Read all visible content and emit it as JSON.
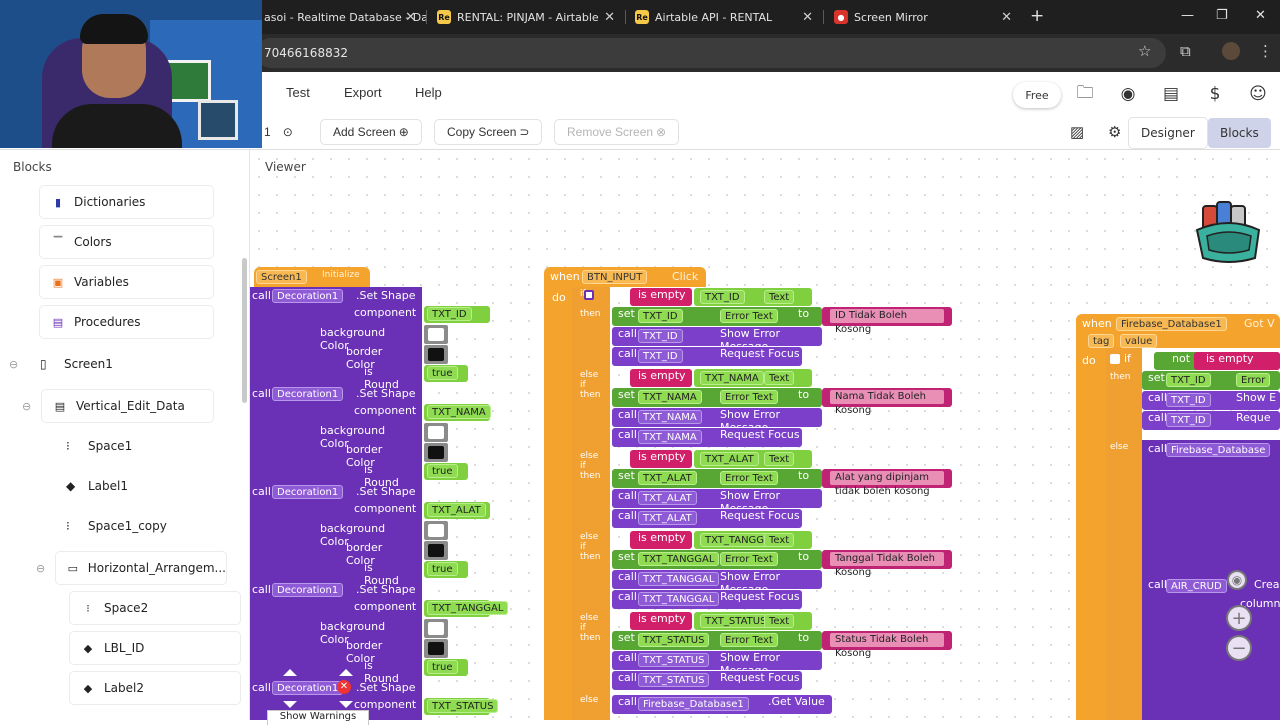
{
  "browser": {
    "tabs": [
      {
        "label": "asoi - Realtime Database - Da",
        "favicon": ""
      },
      {
        "label": "RENTAL: PINJAM - Airtable",
        "favicon": "Re"
      },
      {
        "label": "Airtable API - RENTAL",
        "favicon": "Re"
      },
      {
        "label": "Screen Mirror",
        "favicon": "●"
      }
    ],
    "new_tab": "+",
    "window_controls": [
      "—",
      "❐",
      "✕"
    ],
    "url": "70466168832"
  },
  "menu": {
    "items": [
      "Test",
      "Export",
      "Help"
    ],
    "plan_badge": "Free"
  },
  "screen_bar": {
    "screen_selector": "1",
    "add_screen": "Add Screen",
    "copy_screen": "Copy Screen",
    "remove_screen": "Remove Screen",
    "designer": "Designer",
    "blocks": "Blocks"
  },
  "sidebar": {
    "title": "Blocks",
    "builtins": [
      "Dictionaries",
      "Colors",
      "Variables",
      "Procedures"
    ],
    "tree": [
      {
        "label": "Screen1"
      },
      {
        "label": "Vertical_Edit_Data"
      },
      {
        "label": "Space1"
      },
      {
        "label": "Label1"
      },
      {
        "label": "Space1_copy"
      },
      {
        "label": "Horizontal_Arrangem..."
      },
      {
        "label": "Space2"
      },
      {
        "label": "LBL_ID"
      },
      {
        "label": "Label2"
      }
    ]
  },
  "viewer": {
    "title": "Viewer",
    "tooltip": "Show Warnings",
    "screen_init": {
      "event": "Screen1",
      "event_suffix": "Initialize",
      "calls": [
        {
          "call": "call",
          "component": "Decoration1",
          "method": ".Set Shape",
          "arg_component": "TXT_ID",
          "bg_label": "background Color",
          "border_label": "border Color",
          "round_label": "is Round",
          "round_value": "true",
          "comp_label": "component"
        },
        {
          "call": "call",
          "component": "Decoration1",
          "method": ".Set Shape",
          "arg_component": "TXT_NAMA",
          "bg_label": "background Color",
          "border_label": "border Color",
          "round_label": "is Round",
          "round_value": "true",
          "comp_label": "component"
        },
        {
          "call": "call",
          "component": "Decoration1",
          "method": ".Set Shape",
          "arg_component": "TXT_ALAT",
          "bg_label": "background Color",
          "border_label": "border Color",
          "round_label": "is Round",
          "round_value": "true",
          "comp_label": "component"
        },
        {
          "call": "call",
          "component": "Decoration1",
          "method": ".Set Shape",
          "arg_component": "TXT_TANGGAL",
          "bg_label": "background Color",
          "border_label": "border Color",
          "round_label": "is Round",
          "round_value": "true",
          "comp_label": "component"
        },
        {
          "call": "call",
          "component": "Decoration1",
          "method": ".Set Shape",
          "arg_component": "TXT_STATUS",
          "comp_label": "component"
        }
      ]
    },
    "click_handler": {
      "when": "when",
      "button": "BTN_INPUT",
      "event": "Click",
      "do": "do",
      "branches": [
        {
          "kw": "if",
          "check": "is empty",
          "field": "TXT_ID",
          "prop": "Text",
          "then": "then",
          "msg": "ID Tidak Boleh Kosong"
        },
        {
          "kw": "else if",
          "check": "is empty",
          "field": "TXT_NAMA",
          "prop": "Text",
          "then": "then",
          "msg": "Nama Tidak Boleh Kosong"
        },
        {
          "kw": "else if",
          "check": "is empty",
          "field": "TXT_ALAT",
          "prop": "Text",
          "then": "then",
          "msg": "Alat yang dipinjam tidak boleh kosong"
        },
        {
          "kw": "else if",
          "check": "is empty",
          "field": "TXT_TANGGAL",
          "prop": "Text",
          "then": "then",
          "msg": "Tanggal Tidak Boleh Kosong"
        },
        {
          "kw": "else if",
          "check": "is empty",
          "field": "TXT_STATUS",
          "prop": "Text",
          "then": "then",
          "msg": "Status Tidak Boleh Kosong"
        }
      ],
      "set_kw": "set",
      "error_prop": "Error Text",
      "to_kw": "to",
      "call_kw": "call",
      "show_error": "Show Error Message",
      "request_focus": "Request Focus",
      "else_kw": "else",
      "else_call": "Firebase_Database1",
      "else_method": ".Get Value"
    },
    "firebase_handler": {
      "when": "when",
      "component": "Firebase_Database1",
      "event": "Got V",
      "params": [
        "tag",
        "value"
      ],
      "do": "do",
      "if_kw": "if",
      "not_kw": "not",
      "is_empty": "is empty",
      "then": "then",
      "set_kw": "set",
      "field": "TXT_ID",
      "prop": "Error",
      "call_kw": "call",
      "show": "Show E",
      "request": "Reque",
      "else_kw": "else",
      "else_call": "Firebase_Database",
      "air_call": "AIR_CRUD",
      "air_method": "Crea",
      "column": "column"
    }
  },
  "colors": {
    "event_orange": "#f4a42c",
    "component_purple": "#6a30b5",
    "setter_green": "#58a634",
    "text_pink": "#d21f69",
    "active_mode": "#cfd3ea"
  }
}
